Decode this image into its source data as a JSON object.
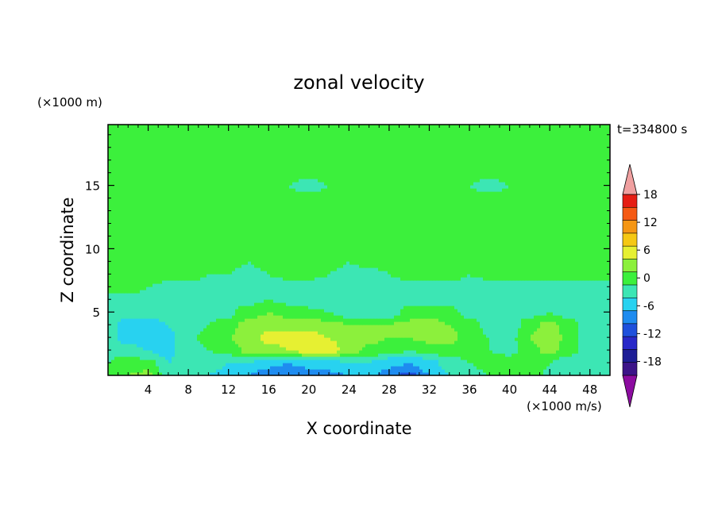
{
  "chart_data": {
    "type": "heatmap",
    "title": "zonal velocity",
    "xlabel": "X coordinate",
    "ylabel": "Z coordinate",
    "y_unit": "(×1000 m)",
    "x_unit": "(×1000 m/s)",
    "time_label": "t=334800 s",
    "xlim": [
      0,
      50
    ],
    "ylim": [
      0,
      19.8
    ],
    "x_ticks": [
      4,
      8,
      12,
      16,
      20,
      24,
      28,
      32,
      36,
      40,
      44,
      48
    ],
    "y_ticks": [
      5,
      10,
      15
    ],
    "colorbar": {
      "levels": [
        -21,
        -18,
        -15,
        -12,
        -9,
        -6,
        -3,
        0,
        3,
        6,
        9,
        12,
        15,
        18,
        21
      ],
      "tick_labels": [
        "18",
        "12",
        "6",
        "0",
        "-6",
        "-12",
        "-18"
      ],
      "tick_values": [
        18,
        12,
        6,
        0,
        -6,
        -12,
        -18
      ],
      "colors": [
        "#3c1488",
        "#1e1e96",
        "#2828c8",
        "#1e50dc",
        "#1e8cf0",
        "#28d2f0",
        "#3ce6b4",
        "#3cf03c",
        "#8cf03c",
        "#e6f032",
        "#f5c814",
        "#f59614",
        "#f55a14",
        "#e61e14",
        "#f0a0a0"
      ],
      "over_color": "#f0a0a0",
      "under_color": "#8c0ca0"
    },
    "field": {
      "x_grid": [
        0,
        2,
        4,
        6,
        8,
        10,
        12,
        14,
        16,
        18,
        20,
        22,
        24,
        26,
        28,
        30,
        32,
        34,
        36,
        38,
        40,
        42,
        44,
        46,
        48,
        50
      ],
      "z_grid": [
        0,
        1,
        2,
        3,
        4,
        5,
        6,
        7,
        8,
        9,
        10,
        11,
        12,
        13,
        14,
        15,
        16,
        17,
        18,
        19,
        19.8
      ],
      "values": [
        [
          2,
          3,
          4,
          -1,
          -2,
          -3,
          -4,
          -6,
          -8,
          -9,
          -8,
          -7,
          -6,
          -5,
          -8,
          -10,
          -6,
          -3,
          -1,
          0,
          1,
          2,
          -1,
          -3,
          -2,
          -1
        ],
        [
          0,
          2,
          1,
          -3,
          -1,
          -2,
          -3,
          -3,
          -5,
          -6,
          -5,
          -4,
          -3,
          -3,
          -5,
          -6,
          -4,
          -2,
          0,
          1,
          2,
          3,
          0,
          -2,
          -1,
          -1
        ],
        [
          -1,
          -2,
          -3,
          -4,
          -1,
          0,
          1,
          4,
          5,
          6,
          7,
          7,
          5,
          2,
          1,
          0,
          1,
          2,
          1,
          0,
          -1,
          2,
          4,
          1,
          -2,
          -2
        ],
        [
          -2,
          -4,
          -5,
          -4,
          -1,
          1,
          3,
          5,
          7,
          7,
          7,
          6,
          5,
          4,
          3,
          3,
          4,
          4,
          2,
          0,
          -1,
          3,
          5,
          2,
          -2,
          -2
        ],
        [
          -2,
          -4,
          -5,
          -3,
          -1,
          0,
          2,
          4,
          5,
          5,
          5,
          4,
          3,
          3,
          3,
          4,
          4,
          3,
          1,
          -1,
          -2,
          2,
          4,
          1,
          -2,
          -2
        ],
        [
          -1,
          -2,
          -2,
          -1,
          -2,
          -2,
          -1,
          2,
          3,
          2,
          1,
          0,
          -2,
          -3,
          -2,
          1,
          2,
          1,
          -1,
          -2,
          -2,
          -1,
          0,
          -1,
          -2,
          -2
        ],
        [
          -1,
          -1,
          -1,
          -2,
          -2,
          -2,
          -2,
          -1,
          0,
          -1,
          -2,
          -2,
          -3,
          -3,
          -2,
          -1,
          -1,
          -1,
          -2,
          -2,
          -2,
          -2,
          -2,
          -1,
          -1,
          -1
        ],
        [
          1,
          1,
          0,
          -1,
          -1,
          -1,
          -2,
          -2,
          -1,
          -2,
          -2,
          -2,
          -3,
          -2,
          -2,
          -1,
          -1,
          -1,
          -1,
          -2,
          -2,
          -2,
          -2,
          -1,
          -1,
          0
        ],
        [
          1,
          2,
          2,
          1,
          1,
          0,
          0,
          -1,
          0,
          1,
          1,
          0,
          -1,
          -1,
          0,
          1,
          1,
          1,
          0,
          1,
          1,
          2,
          1,
          1,
          1,
          0
        ],
        [
          1,
          2,
          1,
          1,
          0,
          0,
          1,
          0,
          1,
          2,
          1,
          1,
          0,
          1,
          1,
          2,
          1,
          0,
          1,
          0,
          0,
          1,
          1,
          0,
          1,
          1
        ],
        [
          1,
          1,
          2,
          1,
          1,
          1,
          1,
          1,
          2,
          1,
          1,
          2,
          1,
          2,
          1,
          1,
          2,
          1,
          1,
          1,
          1,
          1,
          2,
          1,
          1,
          1
        ],
        [
          1,
          0,
          1,
          1,
          0,
          1,
          0,
          1,
          1,
          0,
          0,
          1,
          0,
          1,
          0,
          1,
          1,
          0,
          1,
          1,
          0,
          1,
          1,
          0,
          1,
          1
        ],
        [
          1,
          1,
          0,
          1,
          1,
          1,
          1,
          0,
          1,
          1,
          0,
          1,
          1,
          0,
          0,
          1,
          1,
          1,
          1,
          0,
          1,
          1,
          0,
          1,
          1,
          1
        ],
        [
          1,
          1,
          1,
          1,
          0,
          1,
          0,
          0,
          1,
          1,
          1,
          1,
          0,
          0,
          1,
          1,
          1,
          1,
          0,
          1,
          1,
          0,
          1,
          1,
          0,
          1
        ],
        [
          1,
          1,
          0,
          1,
          1,
          1,
          1,
          1,
          0,
          1,
          1,
          1,
          1,
          1,
          1,
          0,
          1,
          0,
          1,
          1,
          1,
          1,
          1,
          1,
          1,
          1
        ],
        [
          1,
          0,
          0,
          1,
          1,
          0,
          0,
          1,
          1,
          0,
          -1,
          0,
          1,
          1,
          0,
          1,
          0,
          1,
          0,
          -1,
          0,
          1,
          1,
          0,
          0,
          1
        ],
        [
          1,
          1,
          1,
          0,
          1,
          1,
          1,
          1,
          1,
          1,
          1,
          1,
          0,
          1,
          1,
          1,
          1,
          0,
          1,
          1,
          1,
          0,
          1,
          1,
          1,
          1
        ],
        [
          1,
          1,
          0,
          1,
          1,
          1,
          1,
          0,
          1,
          1,
          0,
          1,
          1,
          1,
          0,
          1,
          1,
          1,
          1,
          1,
          1,
          1,
          1,
          0,
          1,
          1
        ],
        [
          1,
          1,
          1,
          1,
          0,
          1,
          1,
          1,
          1,
          1,
          1,
          1,
          1,
          0,
          1,
          1,
          1,
          1,
          1,
          1,
          1,
          1,
          1,
          1,
          1,
          1
        ],
        [
          1,
          1,
          1,
          1,
          1,
          0,
          1,
          1,
          0,
          1,
          1,
          1,
          1,
          1,
          1,
          1,
          0,
          1,
          1,
          1,
          1,
          1,
          1,
          1,
          1,
          1
        ],
        [
          1,
          1,
          1,
          1,
          1,
          1,
          1,
          1,
          1,
          1,
          1,
          1,
          1,
          1,
          1,
          1,
          1,
          1,
          1,
          1,
          1,
          1,
          1,
          1,
          1,
          1
        ]
      ]
    }
  }
}
